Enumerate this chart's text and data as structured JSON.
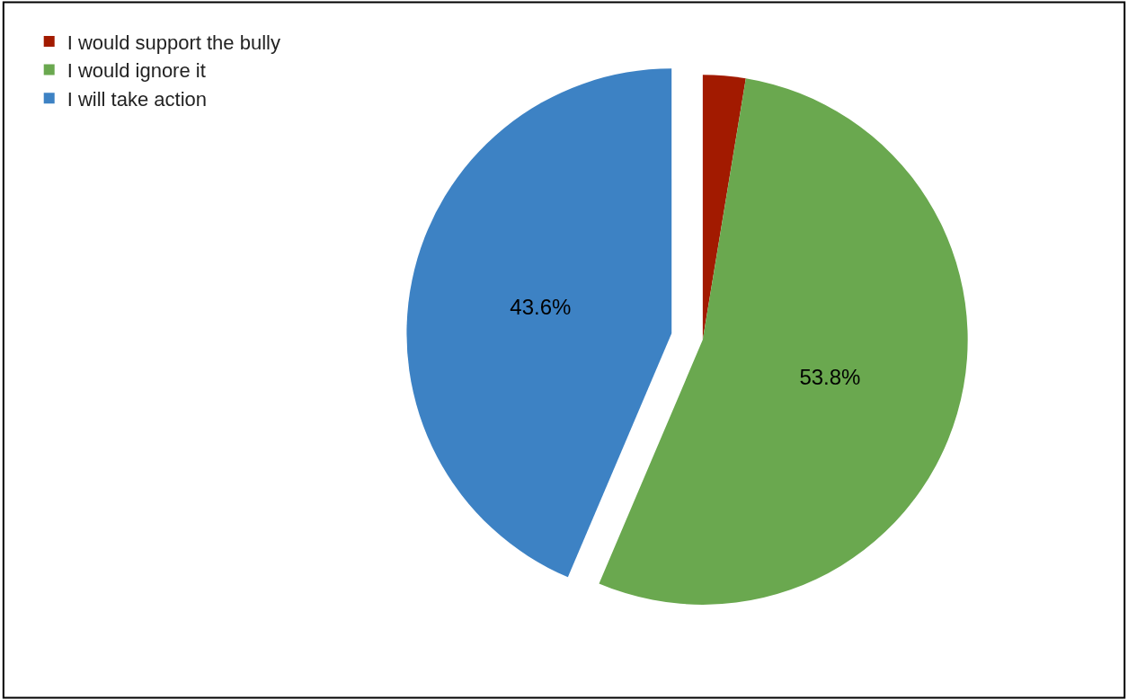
{
  "chart_data": {
    "type": "pie",
    "categories": [
      "I would support the bully",
      "I would ignore it",
      "I will take action"
    ],
    "values": [
      2.6,
      53.8,
      43.6
    ],
    "value_labels": [
      null,
      "53.8%",
      "43.6%"
    ],
    "colors": [
      "#a21a00",
      "#6aa84f",
      "#3d82c4"
    ],
    "legend": "top left"
  }
}
